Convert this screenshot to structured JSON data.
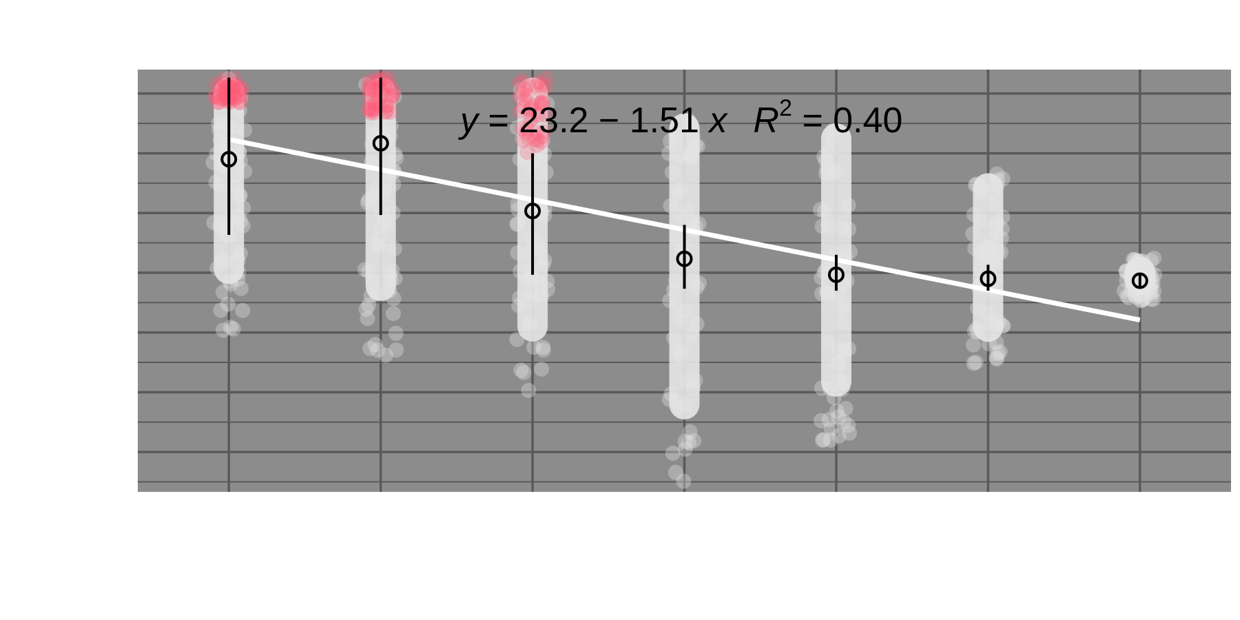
{
  "chart_data": {
    "type": "scatter",
    "title": "",
    "xlabel": "",
    "ylabel": "",
    "xlim": [
      0.4,
      7.6
    ],
    "ylim": [
      4.0,
      25.2
    ],
    "x_ticks": [
      1,
      2,
      3,
      4,
      5,
      6,
      7
    ],
    "y_gridlines": [
      6,
      9,
      12,
      15,
      18,
      21,
      24
    ],
    "y_minor_gridlines": [
      4.5,
      7.5,
      10.5,
      13.5,
      16.5,
      19.5,
      22.5
    ],
    "grid": true,
    "panel_color": "#8c8c8c",
    "grid_color": "#595959",
    "point_color": "#e6e6e6",
    "highlight_color": "#ff5a78",
    "summary_color": "#000000",
    "fit_color": "#ffffff",
    "equation": {
      "y_var": "y",
      "rhs": " = 23.2 − 1.51 ",
      "x_var": "x",
      "r_var": "R",
      "r_sup": "2",
      "r_val": " = 0.40"
    },
    "fit_line": {
      "intercept": 23.2,
      "slope": -1.51,
      "x_range": [
        1,
        7
      ]
    },
    "groups": [
      {
        "x": 1,
        "mean": 20.7,
        "lower": 16.9,
        "upper": 24.8,
        "points_min": 12.0,
        "points_max": 24.8,
        "highlight_min": 23.4
      },
      {
        "x": 2,
        "mean": 21.5,
        "lower": 17.9,
        "upper": 24.8,
        "points_min": 10.5,
        "points_max": 24.8,
        "highlight_min": 23.0
      },
      {
        "x": 3,
        "mean": 18.1,
        "lower": 14.9,
        "upper": 21.0,
        "points_min": 9.0,
        "points_max": 24.8,
        "highlight_min": 21.0
      },
      {
        "x": 4,
        "mean": 15.7,
        "lower": 14.2,
        "upper": 17.4,
        "points_min": 4.5,
        "points_max": 23.0,
        "highlight_min": null
      },
      {
        "x": 5,
        "mean": 14.9,
        "lower": 14.1,
        "upper": 15.9,
        "points_min": 6.4,
        "points_max": 22.5,
        "highlight_min": null
      },
      {
        "x": 6,
        "mean": 14.7,
        "lower": 14.1,
        "upper": 15.4,
        "points_min": 10.3,
        "points_max": 20.0,
        "highlight_min": null
      },
      {
        "x": 7,
        "mean": 14.6,
        "lower": 14.3,
        "upper": 14.9,
        "points_min": 13.6,
        "points_max": 15.8,
        "highlight_min": null
      }
    ]
  }
}
